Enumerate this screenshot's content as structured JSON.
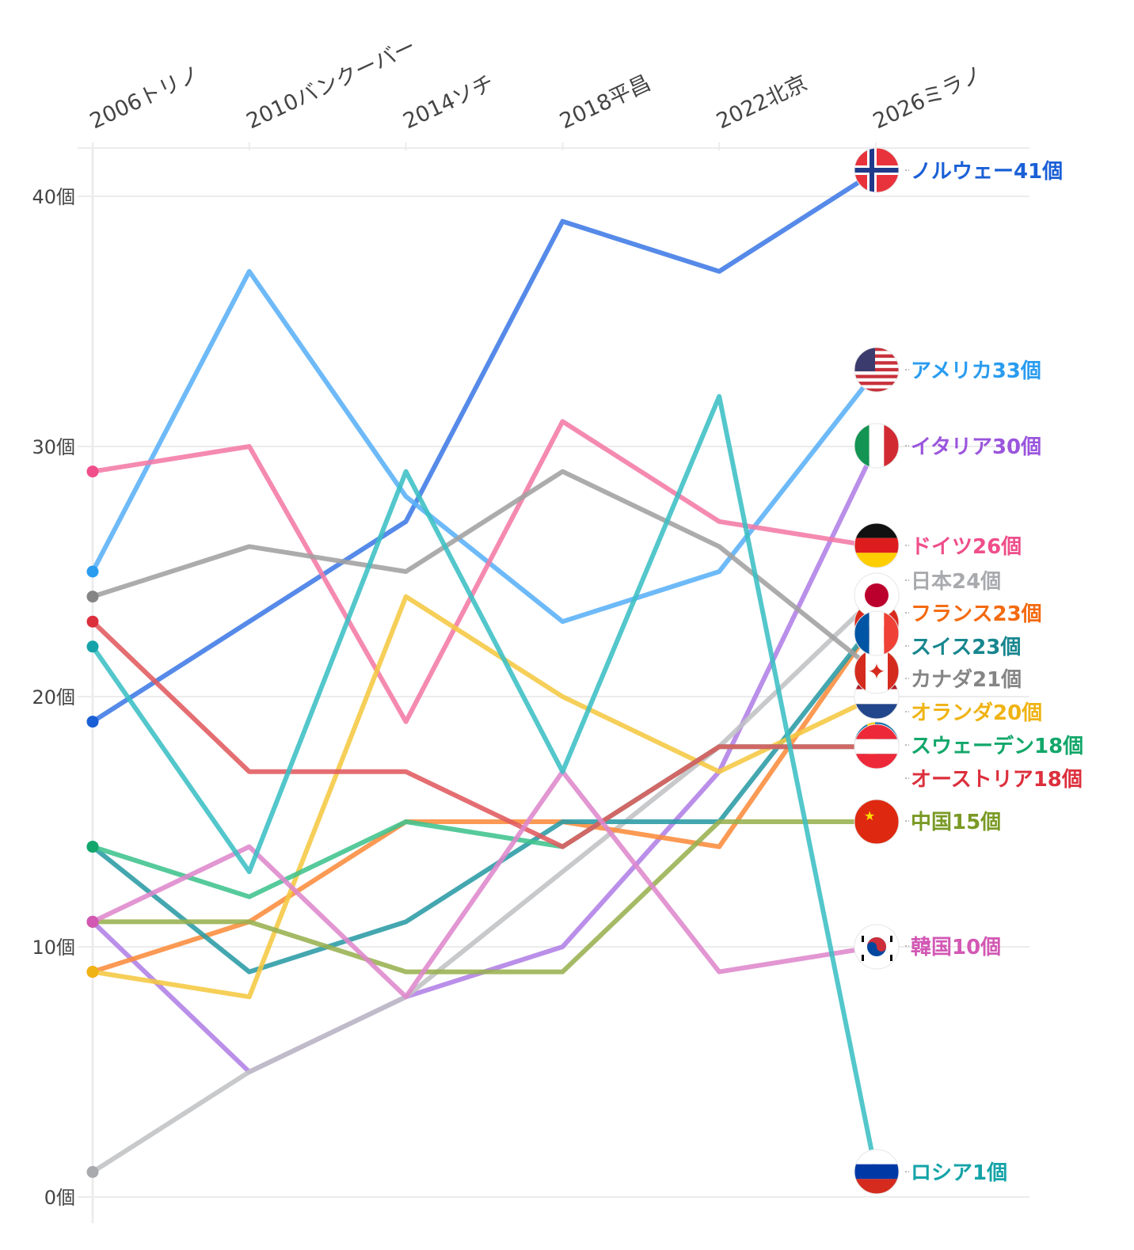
{
  "chart_data": {
    "type": "line",
    "title": "",
    "xlabel": "",
    "ylabel": "",
    "x": [
      "2006トリノ",
      "2010バンクーバー",
      "2014ソチ",
      "2018平昌",
      "2022北京",
      "2026ミラノ"
    ],
    "ylim": [
      0,
      42
    ],
    "yticks": [
      0,
      10,
      20,
      30,
      40
    ],
    "ytick_labels": [
      "0個",
      "10個",
      "20個",
      "30個",
      "40個"
    ],
    "grid": true,
    "legend": "end-labels-right",
    "series": [
      {
        "name": "ノルウェー",
        "label": "ノルウェー41個",
        "flag": "norway",
        "color": "#3f7ae6",
        "label_color": "#1a5fd6",
        "values": [
          19,
          23,
          27,
          39,
          37,
          41
        ]
      },
      {
        "name": "アメリカ",
        "label": "アメリカ33個",
        "flag": "usa",
        "color": "#5ab0f7",
        "label_color": "#2a9cf0",
        "values": [
          25,
          37,
          28,
          23,
          25,
          33
        ]
      },
      {
        "name": "イタリア",
        "label": "イタリア30個",
        "flag": "italy",
        "color": "#b07fe6",
        "label_color": "#9a55dd",
        "values": [
          11,
          5,
          8,
          10,
          17,
          30
        ]
      },
      {
        "name": "ドイツ",
        "label": "ドイツ26個",
        "flag": "germany",
        "color": "#f47aa5",
        "label_color": "#ef4e8a",
        "values": [
          29,
          30,
          19,
          31,
          27,
          26
        ]
      },
      {
        "name": "日本",
        "label": "日本24個",
        "flag": "japan",
        "color": "#c0c2c4",
        "label_color": "#a8aaad",
        "values": [
          1,
          5,
          8,
          13,
          18,
          24
        ]
      },
      {
        "name": "フランス",
        "label": "フランス23個",
        "flag": "france",
        "color": "#fb8c3c",
        "label_color": "#f36a10",
        "values": [
          9,
          11,
          15,
          15,
          14,
          23
        ]
      },
      {
        "name": "スイス",
        "label": "スイス23個",
        "flag": "switzerland",
        "color": "#2a9ba5",
        "label_color": "#17868f",
        "values": [
          14,
          9,
          11,
          15,
          15,
          23
        ]
      },
      {
        "name": "カナダ",
        "label": "カナダ21個",
        "flag": "canada",
        "color": "#a0a0a0",
        "label_color": "#858585",
        "values": [
          24,
          26,
          25,
          29,
          26,
          21
        ]
      },
      {
        "name": "オランダ",
        "label": "オランダ20個",
        "flag": "netherlands",
        "color": "#f5c842",
        "label_color": "#efb313",
        "values": [
          9,
          8,
          24,
          20,
          17,
          20
        ]
      },
      {
        "name": "スウェーデン",
        "label": "スウェーデン18個",
        "flag": "sweden",
        "color": "#3fc38d",
        "label_color": "#12a76a",
        "values": [
          14,
          12,
          15,
          14,
          18,
          18
        ]
      },
      {
        "name": "オーストリア",
        "label": "オーストリア18個",
        "flag": "austria",
        "color": "#e05a5f",
        "label_color": "#dc2f3c",
        "values": [
          23,
          17,
          17,
          14,
          18,
          18
        ]
      },
      {
        "name": "中国",
        "label": "中国15個",
        "flag": "china",
        "color": "#98b050",
        "label_color": "#7a9a25",
        "values": [
          11,
          11,
          9,
          9,
          15,
          15
        ]
      },
      {
        "name": "韓国",
        "label": "韓国10個",
        "flag": "korea",
        "color": "#de88cc",
        "label_color": "#d258b4",
        "values": [
          11,
          14,
          8,
          17,
          9,
          10
        ]
      },
      {
        "name": "ロシア",
        "label": "ロシア1個",
        "flag": "russia",
        "color": "#3bbfc4",
        "label_color": "#14a3a8",
        "values": [
          22,
          13,
          29,
          17,
          32,
          1
        ]
      }
    ]
  }
}
